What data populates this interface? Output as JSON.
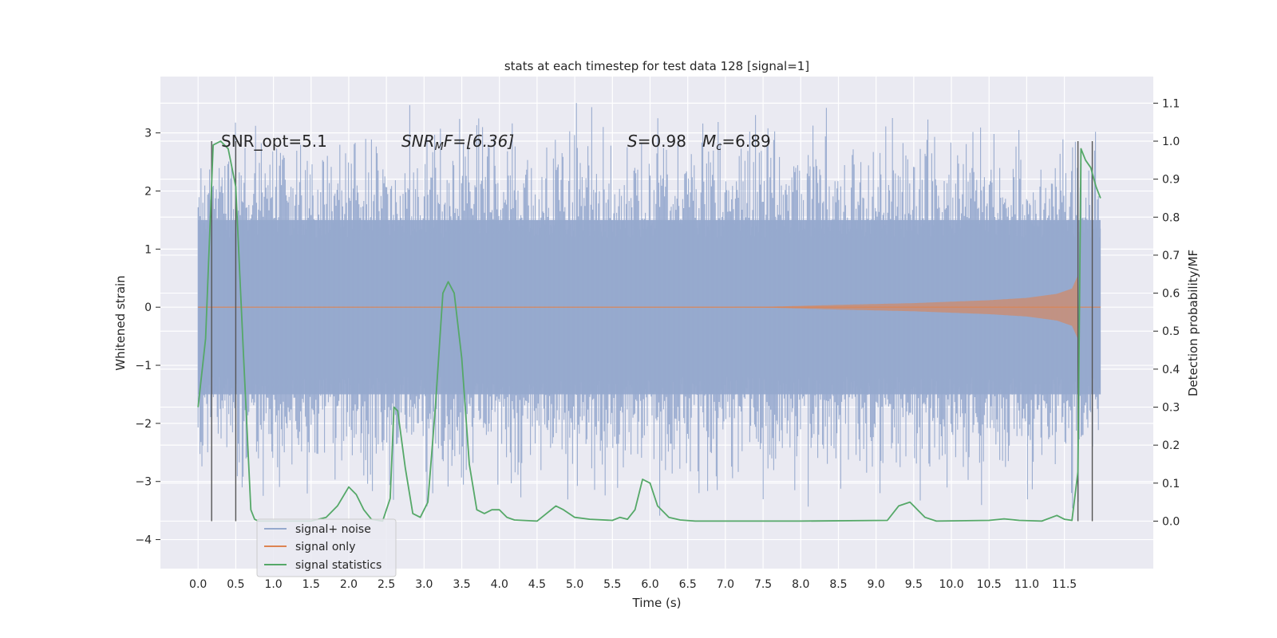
{
  "chart_data": {
    "type": "line",
    "title": "stats at each timestep for test data 128 [signal=1]",
    "xlabel": "Time (s)",
    "ylabel_left": "Whitened strain",
    "ylabel_right": "Detection probability/MF",
    "xlim": [
      -0.5,
      12.68
    ],
    "ylim_left": [
      -4.5,
      3.97
    ],
    "ylim_right": [
      -0.125,
      1.17
    ],
    "x_ticks": [
      0,
      0.5,
      1.0,
      1.5,
      2.0,
      2.5,
      3.0,
      3.5,
      4.0,
      4.5,
      5.0,
      5.5,
      6.0,
      6.5,
      7.0,
      7.5,
      8.0,
      8.5,
      9.0,
      9.5,
      10.0,
      10.5,
      11.0,
      11.5
    ],
    "x_tick_labels": [
      "0.0",
      "0.5",
      "1.0",
      "1.5",
      "2.0",
      "2.5",
      "3.0",
      "3.5",
      "4.0",
      "4.5",
      "5.0",
      "5.5",
      "6.0",
      "6.5",
      "7.0",
      "7.5",
      "8.0",
      "8.5",
      "9.0",
      "9.5",
      "10.0",
      "10.5",
      "11.0",
      "11.5"
    ],
    "y_left_ticks": [
      -4,
      -3,
      -2,
      -1,
      0,
      1,
      2,
      3
    ],
    "y_left_tick_labels": [
      "−4",
      "−3",
      "−2",
      "−1",
      "0",
      "1",
      "2",
      "3"
    ],
    "y_right_ticks": [
      0.0,
      0.1,
      0.2,
      0.3,
      0.4,
      0.5,
      0.6,
      0.7,
      0.8,
      0.9,
      1.0,
      1.1
    ],
    "y_right_tick_labels": [
      "0.0",
      "0.1",
      "0.2",
      "0.3",
      "0.4",
      "0.5",
      "0.6",
      "0.7",
      "0.8",
      "0.9",
      "1.0",
      "1.1"
    ],
    "grid": true,
    "legend_position": "lower-left",
    "annotations": {
      "snr_opt": "SNR_opt=5.1",
      "snr_mf_main": "SNR",
      "snr_mf_sub": "M",
      "snr_mf_rest": "F=[6.36]",
      "s_main": "S",
      "s_rest": "=0.98",
      "mc_main": "M",
      "mc_sub": "c",
      "mc_rest": "=6.89"
    },
    "vertical_lines_x": [
      0.18,
      0.5,
      11.68,
      11.87
    ],
    "series": [
      {
        "name": "signal+ noise",
        "color": "#96a9ce",
        "kind": "noise-band",
        "x_range": [
          0.0,
          11.98
        ],
        "core_amplitude": 1.5,
        "spike_max_abs": 4.1
      },
      {
        "name": "signal only",
        "color": "#dd8452",
        "kind": "chirp",
        "x_range": [
          0.0,
          11.98
        ],
        "envelope": [
          [
            0.0,
            0.0
          ],
          [
            7.5,
            0.005
          ],
          [
            8.5,
            0.04
          ],
          [
            9.5,
            0.07
          ],
          [
            10.5,
            0.12
          ],
          [
            11.0,
            0.16
          ],
          [
            11.4,
            0.23
          ],
          [
            11.6,
            0.32
          ],
          [
            11.68,
            0.55
          ]
        ]
      },
      {
        "name": "signal statistics",
        "color": "#55a868",
        "kind": "line",
        "x": [
          0.0,
          0.1,
          0.2,
          0.3,
          0.4,
          0.5,
          0.6,
          0.7,
          0.75,
          0.8,
          1.0,
          1.5,
          1.7,
          1.85,
          2.0,
          2.1,
          2.2,
          2.3,
          2.45,
          2.55,
          2.6,
          2.65,
          2.75,
          2.85,
          2.95,
          3.05,
          3.15,
          3.25,
          3.32,
          3.4,
          3.5,
          3.6,
          3.7,
          3.8,
          3.9,
          4.0,
          4.1,
          4.2,
          4.5,
          4.75,
          4.85,
          5.0,
          5.2,
          5.5,
          5.6,
          5.7,
          5.8,
          5.9,
          6.0,
          6.1,
          6.25,
          6.4,
          6.6,
          8.0,
          9.15,
          9.3,
          9.45,
          9.55,
          9.65,
          9.8,
          10.5,
          10.7,
          10.9,
          11.2,
          11.4,
          11.5,
          11.6,
          11.68,
          11.72,
          11.78,
          11.85,
          11.92,
          11.98
        ],
        "y": [
          0.3,
          0.48,
          0.99,
          1.0,
          0.98,
          0.88,
          0.45,
          0.03,
          0.005,
          0.0,
          0.0,
          0.0,
          0.01,
          0.04,
          0.09,
          0.07,
          0.03,
          0.005,
          0.0,
          0.06,
          0.3,
          0.29,
          0.14,
          0.02,
          0.01,
          0.05,
          0.3,
          0.6,
          0.63,
          0.6,
          0.43,
          0.15,
          0.03,
          0.02,
          0.03,
          0.03,
          0.01,
          0.003,
          0.0,
          0.04,
          0.03,
          0.01,
          0.005,
          0.002,
          0.01,
          0.005,
          0.03,
          0.11,
          0.1,
          0.04,
          0.01,
          0.003,
          0.0,
          0.0,
          0.002,
          0.04,
          0.05,
          0.03,
          0.01,
          0.0,
          0.002,
          0.006,
          0.002,
          0.0,
          0.015,
          0.005,
          0.002,
          0.13,
          0.98,
          0.95,
          0.93,
          0.88,
          0.85
        ]
      }
    ]
  }
}
